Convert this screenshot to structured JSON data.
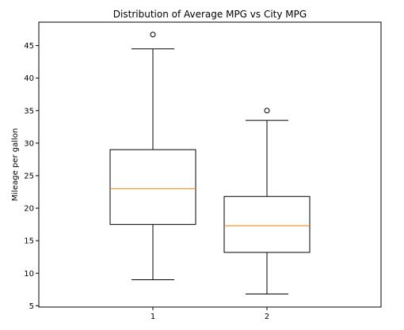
{
  "chart_data": {
    "type": "boxplot",
    "title": "Distribution of Average MPG vs City MPG",
    "xlabel": "",
    "ylabel": "Mileage per gallon",
    "categories": [
      "1",
      "2"
    ],
    "ylim": [
      4.8,
      48.6
    ],
    "yticks": [
      5,
      10,
      15,
      20,
      25,
      30,
      35,
      40,
      45
    ],
    "grid": false,
    "boxes": [
      {
        "category": "1",
        "whisker_low": 9.0,
        "q1": 17.5,
        "median": 23.0,
        "q3": 29.0,
        "whisker_high": 44.5,
        "outliers": [
          46.7
        ]
      },
      {
        "category": "2",
        "whisker_low": 6.8,
        "q1": 13.2,
        "median": 17.3,
        "q3": 21.8,
        "whisker_high": 33.5,
        "outliers": [
          35.0
        ]
      }
    ],
    "colors": {
      "box": "#000000",
      "median": "#ff7f0e",
      "outlier": "#000000"
    }
  }
}
